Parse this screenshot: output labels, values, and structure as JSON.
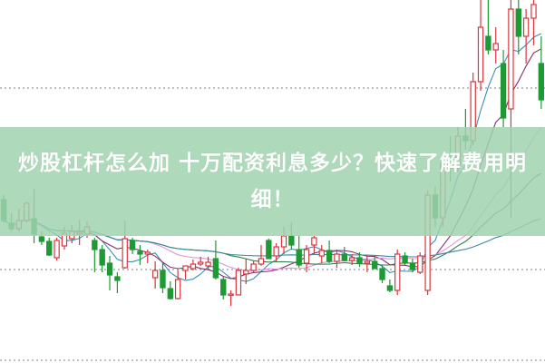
{
  "banner": {
    "title": "炒股杠杆怎么加 十万配资利息多少？快速了解费用明细！"
  },
  "colors": {
    "up": "#d9363e",
    "down": "#1e9a35",
    "grid": "#999999",
    "banner": "#a0d2af"
  },
  "chart_data": {
    "type": "candlestick",
    "title": "",
    "xlabel": "",
    "ylabel": "",
    "ylim": [
      0,
      400
    ],
    "grid": "horizontal dotted",
    "gridlines": [
      303,
      103,
      3
    ],
    "ohlc": [
      [
        180,
        185,
        155,
        157
      ],
      [
        154,
        165,
        145,
        148
      ],
      [
        148,
        170,
        145,
        157
      ],
      [
        157,
        178,
        155,
        176
      ],
      [
        159,
        192,
        132,
        142
      ],
      [
        139,
        145,
        130,
        134
      ],
      [
        134,
        138,
        118,
        119
      ],
      [
        116,
        138,
        113,
        135
      ],
      [
        129,
        150,
        125,
        143
      ],
      [
        137,
        152,
        132,
        145
      ],
      [
        142,
        158,
        130,
        144
      ],
      [
        142,
        156,
        138,
        150
      ],
      [
        135,
        138,
        100,
        125
      ],
      [
        125,
        130,
        100,
        108
      ],
      [
        110,
        118,
        80,
        97
      ],
      [
        95,
        100,
        77,
        91
      ],
      [
        105,
        157,
        104,
        137
      ],
      [
        135,
        138,
        120,
        125
      ],
      [
        123,
        130,
        108,
        120
      ],
      [
        120,
        125,
        110,
        122
      ],
      [
        94,
        112,
        82,
        102
      ],
      [
        102,
        110,
        77,
        83
      ],
      [
        82,
        90,
        70,
        71
      ],
      [
        71,
        102,
        70,
        92
      ],
      [
        102,
        107,
        92,
        107
      ],
      [
        104,
        114,
        102,
        109
      ],
      [
        109,
        117,
        107,
        111
      ],
      [
        107,
        117,
        103,
        111
      ],
      [
        115,
        135,
        92,
        94
      ],
      [
        92,
        95,
        70,
        75
      ],
      [
        75,
        80,
        63,
        76
      ],
      [
        75,
        105,
        75,
        102
      ],
      [
        98,
        115,
        87,
        102
      ],
      [
        102,
        112,
        100,
        109
      ],
      [
        109,
        130,
        107,
        115
      ],
      [
        135,
        137,
        115,
        115
      ],
      [
        118,
        132,
        112,
        128
      ],
      [
        128,
        150,
        120,
        140
      ],
      [
        140,
        155,
        125,
        130
      ],
      [
        125,
        140,
        105,
        108
      ],
      [
        110,
        130,
        100,
        125
      ],
      [
        130,
        140,
        120,
        138
      ],
      [
        118,
        130,
        110,
        124
      ],
      [
        124,
        135,
        110,
        112
      ],
      [
        112,
        125,
        105,
        120
      ],
      [
        120,
        128,
        112,
        113
      ],
      [
        113,
        120,
        108,
        116
      ],
      [
        116,
        122,
        106,
        110
      ],
      [
        110,
        118,
        100,
        112
      ],
      [
        112,
        118,
        104,
        104
      ],
      [
        104,
        108,
        88,
        92
      ],
      [
        85,
        92,
        78,
        80
      ],
      [
        80,
        125,
        75,
        120
      ],
      [
        118,
        122,
        108,
        110
      ],
      [
        110,
        115,
        100,
        103
      ],
      [
        100,
        122,
        98,
        118
      ],
      [
        80,
        190,
        75,
        185
      ],
      [
        185,
        195,
        150,
        160
      ],
      [
        160,
        230,
        150,
        220
      ],
      [
        220,
        250,
        200,
        215
      ],
      [
        215,
        260,
        210,
        250
      ],
      [
        250,
        280,
        235,
        245
      ],
      [
        245,
        320,
        240,
        310
      ],
      [
        310,
        400,
        300,
        370
      ],
      [
        360,
        400,
        340,
        345
      ],
      [
        345,
        370,
        330,
        352
      ],
      [
        330,
        345,
        260,
        270
      ],
      [
        280,
        400,
        160,
        390
      ],
      [
        390,
        400,
        340,
        360
      ],
      [
        360,
        390,
        330,
        380
      ],
      [
        380,
        400,
        350,
        395
      ],
      [
        330,
        360,
        280,
        290
      ]
    ],
    "moving_averages": [
      {
        "period": 5,
        "color": "#3b8fb5"
      },
      {
        "period": 10,
        "color": "#8a2f6e"
      },
      {
        "period": 20,
        "color": "#e294e0"
      },
      {
        "period": 30,
        "color": "#2f7f4a"
      },
      {
        "period": 60,
        "color": "#3a8aa0"
      }
    ]
  }
}
